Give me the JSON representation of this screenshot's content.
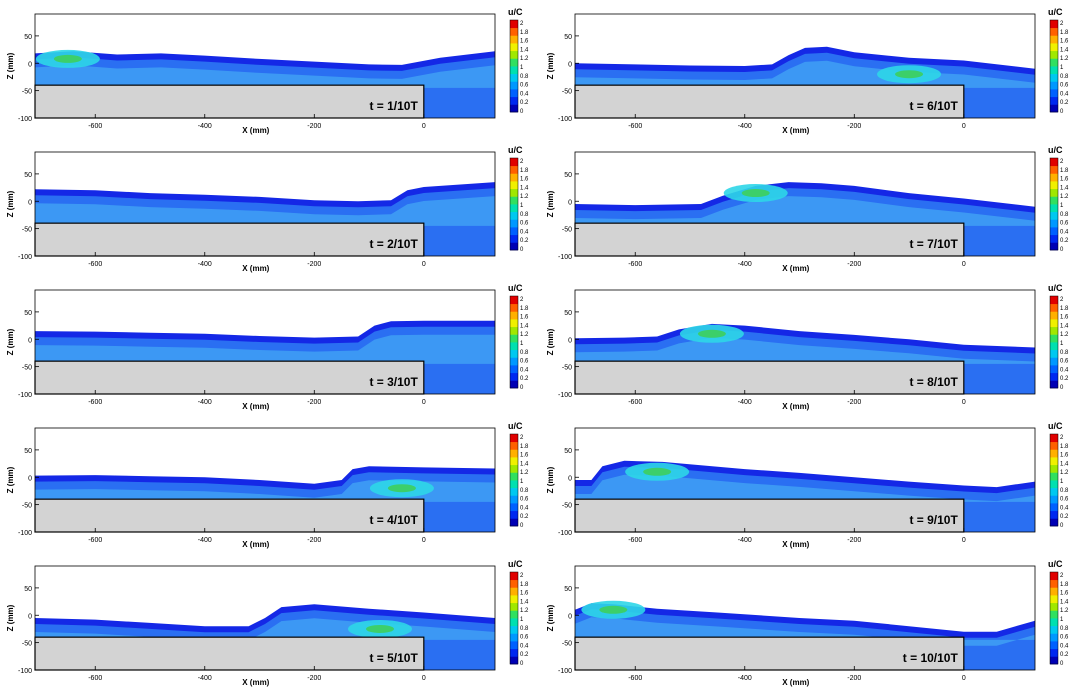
{
  "figure": {
    "xlabel": "X (mm)",
    "ylabel": "Z (mm)",
    "colorbar_title": "u/C",
    "colorbar_ticks": [
      "2",
      "1.8",
      "1.6",
      "1.4",
      "1.2",
      "1",
      "0.8",
      "0.6",
      "0.4",
      "0.2",
      "0"
    ],
    "x_ticks": [
      "-600",
      "-400",
      "-200",
      "0"
    ],
    "y_ticks": [
      "50",
      "0",
      "-50",
      "-100"
    ],
    "colors": {
      "bed": "#d3d3d3",
      "deep_blue": "#1428e6",
      "mid_blue": "#2a6ff2",
      "light_blue": "#3fa0f5",
      "cyan": "#2ed6e8",
      "green": "#3ccf6a",
      "frame": "#000000"
    },
    "colormap": [
      "#0000b4",
      "#0028f0",
      "#0060ff",
      "#0098ff",
      "#00c8f0",
      "#00e0b0",
      "#30e060",
      "#a0e800",
      "#f0f000",
      "#ffb000",
      "#ff6000",
      "#e00000"
    ]
  },
  "chart_data": [
    {
      "type": "heatmap",
      "label": "t = 1/10T",
      "xlim": [
        -710,
        130
      ],
      "ylim": [
        -100,
        90
      ],
      "surface": [
        [
          -710,
          18
        ],
        [
          -640,
          22
        ],
        [
          -560,
          16
        ],
        [
          -480,
          18
        ],
        [
          -400,
          14
        ],
        [
          -300,
          8
        ],
        [
          -200,
          3
        ],
        [
          -100,
          -2
        ],
        [
          -40,
          -3
        ],
        [
          30,
          10
        ],
        [
          130,
          22
        ]
      ],
      "hotspot": {
        "x": -650,
        "z": 8,
        "level": "green"
      }
    },
    {
      "type": "heatmap",
      "label": "t = 2/10T",
      "xlim": [
        -710,
        130
      ],
      "ylim": [
        -100,
        90
      ],
      "surface": [
        [
          -710,
          22
        ],
        [
          -600,
          20
        ],
        [
          -500,
          15
        ],
        [
          -400,
          12
        ],
        [
          -300,
          8
        ],
        [
          -200,
          2
        ],
        [
          -120,
          0
        ],
        [
          -60,
          2
        ],
        [
          -30,
          20
        ],
        [
          0,
          26
        ],
        [
          130,
          35
        ]
      ],
      "hotspot": null
    },
    {
      "type": "heatmap",
      "label": "t = 3/10T",
      "xlim": [
        -710,
        130
      ],
      "ylim": [
        -100,
        90
      ],
      "surface": [
        [
          -710,
          15
        ],
        [
          -600,
          14
        ],
        [
          -500,
          12
        ],
        [
          -400,
          10
        ],
        [
          -300,
          6
        ],
        [
          -200,
          3
        ],
        [
          -120,
          5
        ],
        [
          -90,
          25
        ],
        [
          -60,
          33
        ],
        [
          0,
          34
        ],
        [
          130,
          34
        ]
      ],
      "hotspot": null
    },
    {
      "type": "heatmap",
      "label": "t = 4/10T",
      "xlim": [
        -710,
        130
      ],
      "ylim": [
        -100,
        90
      ],
      "surface": [
        [
          -710,
          3
        ],
        [
          -600,
          4
        ],
        [
          -500,
          2
        ],
        [
          -400,
          0
        ],
        [
          -300,
          -5
        ],
        [
          -200,
          -12
        ],
        [
          -150,
          -5
        ],
        [
          -130,
          15
        ],
        [
          -100,
          20
        ],
        [
          0,
          18
        ],
        [
          130,
          16
        ]
      ],
      "hotspot": {
        "x": -40,
        "z": -20,
        "level": "green"
      }
    },
    {
      "type": "heatmap",
      "label": "t = 5/10T",
      "xlim": [
        -710,
        130
      ],
      "ylim": [
        -100,
        90
      ],
      "surface": [
        [
          -710,
          -5
        ],
        [
          -600,
          -8
        ],
        [
          -500,
          -14
        ],
        [
          -400,
          -20
        ],
        [
          -320,
          -20
        ],
        [
          -290,
          -5
        ],
        [
          -260,
          15
        ],
        [
          -200,
          20
        ],
        [
          -100,
          12
        ],
        [
          0,
          5
        ],
        [
          130,
          -5
        ]
      ],
      "hotspot": {
        "x": -80,
        "z": -25,
        "level": "green"
      }
    },
    {
      "type": "heatmap",
      "label": "t = 6/10T",
      "xlim": [
        -710,
        130
      ],
      "ylim": [
        -100,
        90
      ],
      "surface": [
        [
          -710,
          0
        ],
        [
          -600,
          -2
        ],
        [
          -500,
          -4
        ],
        [
          -400,
          -5
        ],
        [
          -350,
          -2
        ],
        [
          -320,
          15
        ],
        [
          -290,
          28
        ],
        [
          -250,
          30
        ],
        [
          -200,
          20
        ],
        [
          -100,
          10
        ],
        [
          0,
          5
        ],
        [
          130,
          -10
        ]
      ],
      "hotspot": {
        "x": -100,
        "z": -20,
        "level": "green"
      }
    },
    {
      "type": "heatmap",
      "label": "t = 7/10T",
      "xlim": [
        -710,
        130
      ],
      "ylim": [
        -100,
        90
      ],
      "surface": [
        [
          -710,
          -5
        ],
        [
          -600,
          -7
        ],
        [
          -480,
          -5
        ],
        [
          -440,
          10
        ],
        [
          -380,
          28
        ],
        [
          -320,
          35
        ],
        [
          -260,
          33
        ],
        [
          -200,
          28
        ],
        [
          -100,
          15
        ],
        [
          0,
          5
        ],
        [
          130,
          -10
        ]
      ],
      "hotspot": {
        "x": -380,
        "z": 15,
        "level": "green"
      }
    },
    {
      "type": "heatmap",
      "label": "t = 8/10T",
      "xlim": [
        -710,
        130
      ],
      "ylim": [
        -100,
        90
      ],
      "surface": [
        [
          -710,
          2
        ],
        [
          -620,
          3
        ],
        [
          -560,
          5
        ],
        [
          -520,
          18
        ],
        [
          -460,
          28
        ],
        [
          -400,
          25
        ],
        [
          -300,
          15
        ],
        [
          -200,
          8
        ],
        [
          -100,
          0
        ],
        [
          0,
          -10
        ],
        [
          130,
          -15
        ]
      ],
      "hotspot": {
        "x": -460,
        "z": 10,
        "level": "green"
      }
    },
    {
      "type": "heatmap",
      "label": "t = 9/10T",
      "xlim": [
        -710,
        130
      ],
      "ylim": [
        -100,
        90
      ],
      "surface": [
        [
          -710,
          -5
        ],
        [
          -680,
          -5
        ],
        [
          -660,
          20
        ],
        [
          -620,
          30
        ],
        [
          -550,
          28
        ],
        [
          -400,
          15
        ],
        [
          -300,
          8
        ],
        [
          -200,
          0
        ],
        [
          -100,
          -8
        ],
        [
          0,
          -15
        ],
        [
          60,
          -18
        ],
        [
          130,
          -8
        ]
      ],
      "hotspot": {
        "x": -560,
        "z": 10,
        "level": "green"
      }
    },
    {
      "type": "heatmap",
      "label": "t = 10/10T",
      "xlim": [
        -710,
        130
      ],
      "ylim": [
        -100,
        90
      ],
      "surface": [
        [
          -710,
          10
        ],
        [
          -680,
          22
        ],
        [
          -640,
          20
        ],
        [
          -560,
          12
        ],
        [
          -450,
          5
        ],
        [
          -300,
          -5
        ],
        [
          -200,
          -10
        ],
        [
          -100,
          -20
        ],
        [
          0,
          -30
        ],
        [
          60,
          -30
        ],
        [
          130,
          -10
        ]
      ],
      "hotspot": {
        "x": -640,
        "z": 10,
        "level": "green"
      }
    }
  ]
}
